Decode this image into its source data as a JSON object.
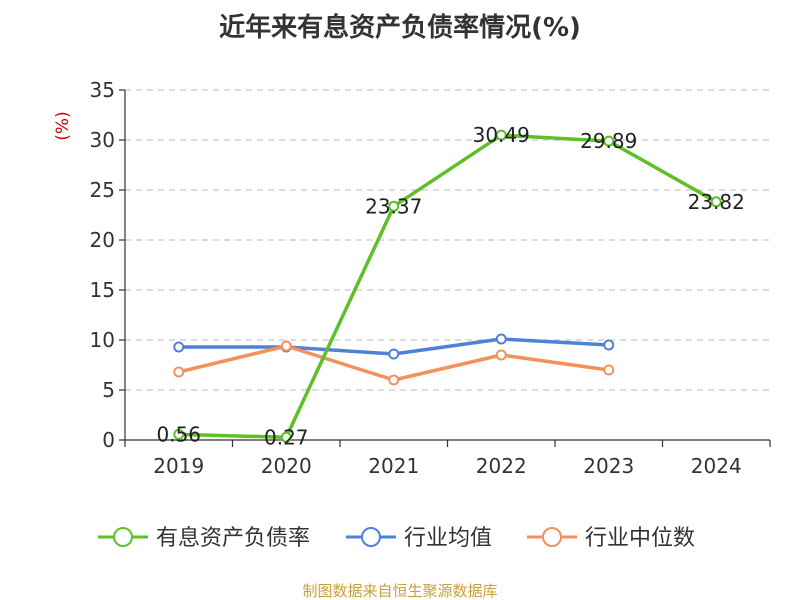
{
  "chart_data": {
    "type": "line",
    "title": "近年来有息资产负债率情况(%)",
    "ylabel": "(%)",
    "categories": [
      "2019",
      "2020",
      "2021",
      "2022",
      "2023",
      "2024"
    ],
    "ylim": [
      0,
      35
    ],
    "yticks": [
      0,
      5,
      10,
      15,
      20,
      25,
      30,
      35
    ],
    "grid": true,
    "legend_position": "bottom",
    "series": [
      {
        "name": "有息资产负债率",
        "color": "#5cc129",
        "values": [
          0.56,
          0.27,
          23.37,
          30.49,
          29.89,
          23.82
        ],
        "data_labels": [
          "0.56",
          "0.27",
          "23.37",
          "30.49",
          "29.89",
          "23.82"
        ]
      },
      {
        "name": "行业均值",
        "color": "#4f81d9",
        "values": [
          9.3,
          9.3,
          8.6,
          10.1,
          9.5,
          null
        ]
      },
      {
        "name": "行业中位数",
        "color": "#f2915c",
        "values": [
          6.8,
          9.4,
          6.0,
          8.5,
          7.0,
          null
        ]
      }
    ],
    "source": "制图数据来自恒生聚源数据库"
  }
}
